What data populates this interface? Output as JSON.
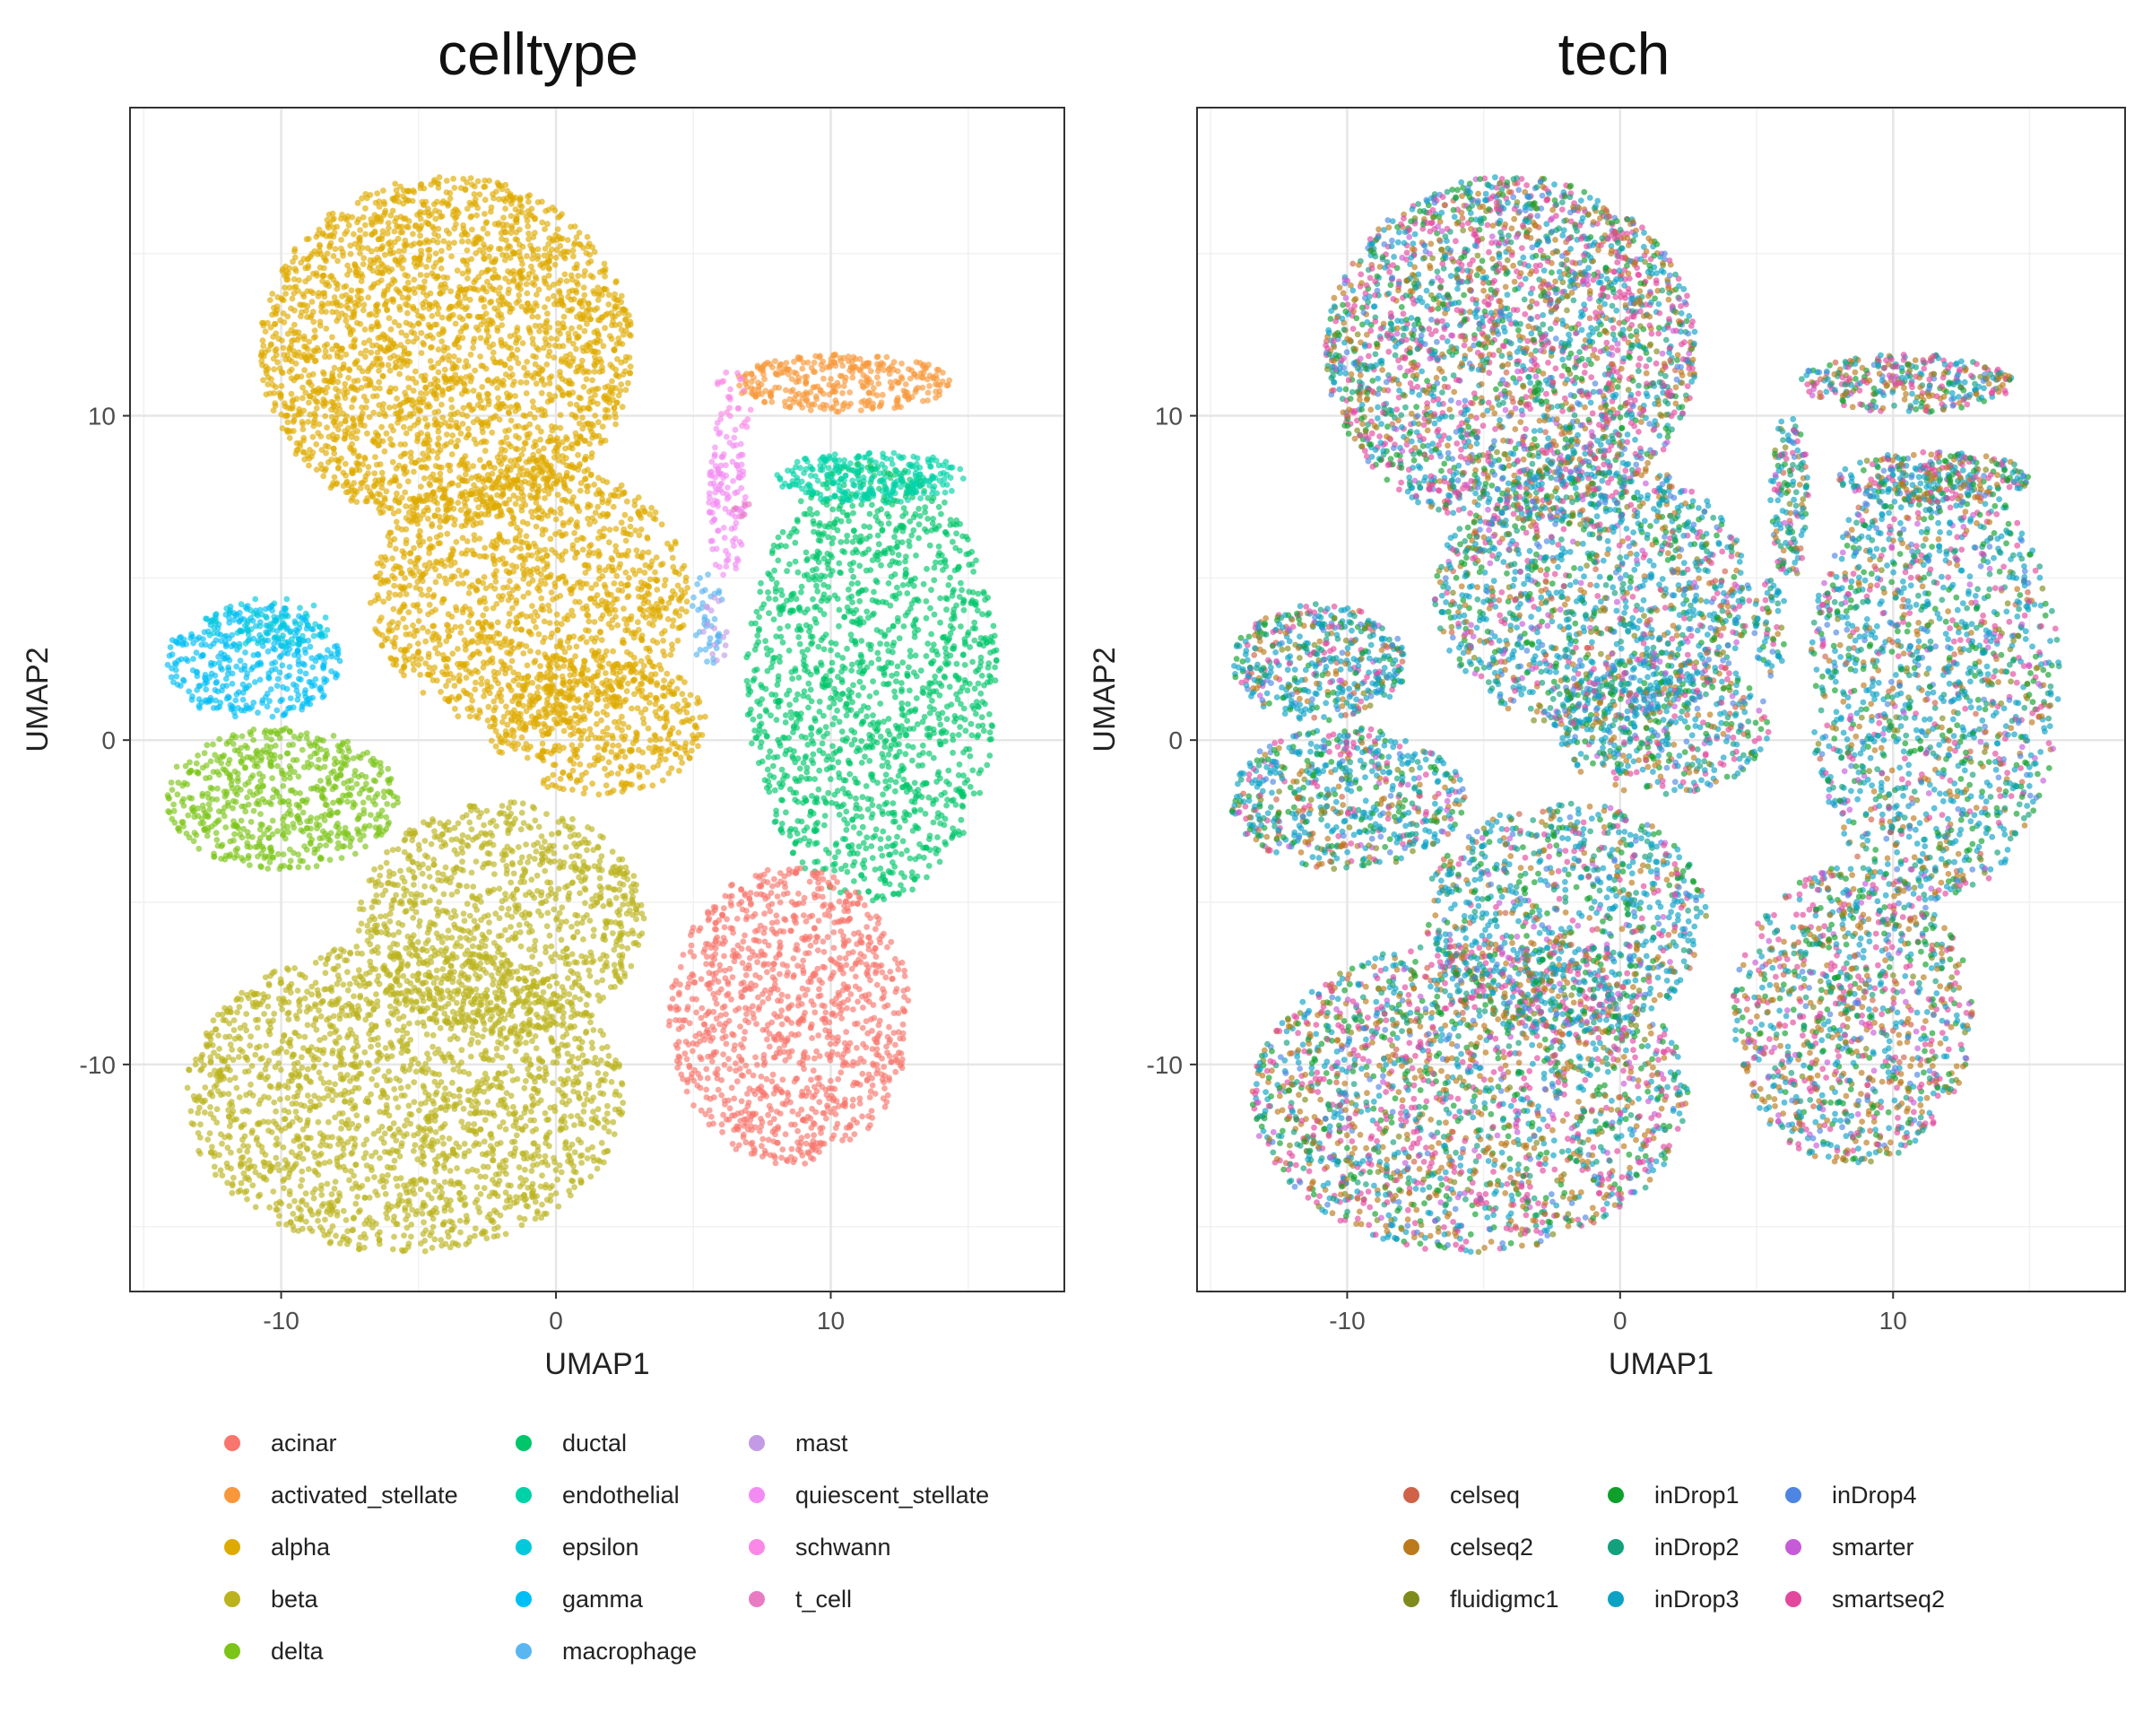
{
  "chart_data": [
    {
      "type": "scatter",
      "title": "celltype",
      "xlabel": "UMAP1",
      "ylabel": "UMAP2",
      "xlim": [
        -15.5,
        18.5
      ],
      "ylim": [
        -17,
        19.5
      ],
      "xticks": [
        -10,
        0,
        10
      ],
      "yticks": [
        -10,
        0,
        10
      ],
      "xtick_labels": [
        "-10",
        "0",
        "10"
      ],
      "ytick_labels": [
        "-10",
        "0",
        "10"
      ],
      "grid": true,
      "legend_position": "bottom",
      "legend": [
        {
          "label": "acinar",
          "color": "#F8766D"
        },
        {
          "label": "activated_stellate",
          "color": "#F8983B"
        },
        {
          "label": "alpha",
          "color": "#DEAA00"
        },
        {
          "label": "beta",
          "color": "#BBB31E"
        },
        {
          "label": "delta",
          "color": "#7CC418"
        },
        {
          "label": "ductal",
          "color": "#00C66A"
        },
        {
          "label": "endothelial",
          "color": "#00D2A8"
        },
        {
          "label": "epsilon",
          "color": "#00C9DB"
        },
        {
          "label": "gamma",
          "color": "#00BFF4"
        },
        {
          "label": "macrophage",
          "color": "#5AB6F0"
        },
        {
          "label": "mast",
          "color": "#C39BE5"
        },
        {
          "label": "quiescent_stellate",
          "color": "#F28CF3"
        },
        {
          "label": "schwann",
          "color": "#FA88E6"
        },
        {
          "label": "t_cell",
          "color": "#E87BC2"
        }
      ],
      "clusters": [
        {
          "series": "alpha",
          "cx": -4,
          "cy": 12,
          "rx": 6.8,
          "ry": 5.4,
          "n": 2600
        },
        {
          "series": "alpha",
          "cx": -1,
          "cy": 4.5,
          "rx": 5.8,
          "ry": 4.2,
          "n": 1400
        },
        {
          "series": "alpha",
          "cx": 1.5,
          "cy": 0.5,
          "rx": 4,
          "ry": 2.2,
          "n": 500
        },
        {
          "series": "beta",
          "cx": -5.5,
          "cy": -11,
          "rx": 8,
          "ry": 4.8,
          "n": 2100
        },
        {
          "series": "beta",
          "cx": -2,
          "cy": -5.5,
          "rx": 5.2,
          "ry": 3.6,
          "n": 1000
        },
        {
          "series": "gamma",
          "cx": -11,
          "cy": 2.4,
          "rx": 3.2,
          "ry": 1.8,
          "n": 380
        },
        {
          "series": "epsilon",
          "cx": -10.5,
          "cy": 3.6,
          "rx": 2.4,
          "ry": 0.8,
          "n": 80
        },
        {
          "series": "delta",
          "cx": -10,
          "cy": -1.8,
          "rx": 4.3,
          "ry": 2.2,
          "n": 620
        },
        {
          "series": "ductal",
          "cx": 11.5,
          "cy": 1.8,
          "rx": 4.6,
          "ry": 6.8,
          "n": 1500
        },
        {
          "series": "acinar",
          "cx": 8.5,
          "cy": -8.5,
          "rx": 4.4,
          "ry": 4.6,
          "n": 1100
        },
        {
          "series": "activated_stellate",
          "cx": 10.5,
          "cy": 11,
          "rx": 4,
          "ry": 0.9,
          "n": 320
        },
        {
          "series": "endothelial",
          "cx": 11.5,
          "cy": 8.1,
          "rx": 3.5,
          "ry": 0.8,
          "n": 260
        },
        {
          "series": "quiescent_stellate",
          "cx": 6.2,
          "cy": 7.5,
          "rx": 0.7,
          "ry": 2.6,
          "n": 120
        },
        {
          "series": "schwann",
          "cx": 6.5,
          "cy": 10.5,
          "rx": 0.7,
          "ry": 1.1,
          "n": 25
        },
        {
          "series": "macrophage",
          "cx": 5.5,
          "cy": 3.8,
          "rx": 0.6,
          "ry": 1.6,
          "n": 40
        },
        {
          "series": "mast",
          "cx": 5.8,
          "cy": 3.2,
          "rx": 0.5,
          "ry": 1.2,
          "n": 15
        },
        {
          "series": "t_cell",
          "cx": 6.8,
          "cy": 7.2,
          "rx": 0.4,
          "ry": 0.5,
          "n": 6
        }
      ]
    },
    {
      "type": "scatter",
      "title": "tech",
      "xlabel": "UMAP1",
      "ylabel": "UMAP2",
      "xlim": [
        -15.5,
        18.5
      ],
      "ylim": [
        -17,
        19.5
      ],
      "xticks": [
        -10,
        0,
        10
      ],
      "yticks": [
        -10,
        0,
        10
      ],
      "xtick_labels": [
        "-10",
        "0",
        "10"
      ],
      "ytick_labels": [
        "-10",
        "0",
        "10"
      ],
      "grid": true,
      "legend_position": "bottom",
      "legend": [
        {
          "label": "celseq",
          "color": "#D0624A"
        },
        {
          "label": "celseq2",
          "color": "#BB7A1C"
        },
        {
          "label": "fluidigmc1",
          "color": "#7F8A1C"
        },
        {
          "label": "inDrop1",
          "color": "#0FA02B"
        },
        {
          "label": "inDrop2",
          "color": "#12A07D"
        },
        {
          "label": "inDrop3",
          "color": "#0DA2C4"
        },
        {
          "label": "inDrop4",
          "color": "#4E85E2"
        },
        {
          "label": "smarter",
          "color": "#C65BD8"
        },
        {
          "label": "smartseq2",
          "color": "#E2489E"
        }
      ],
      "clusters": [
        {
          "series": "mixed",
          "cx": -4,
          "cy": 12,
          "rx": 6.8,
          "ry": 5.4,
          "n": 2600
        },
        {
          "series": "mixed",
          "cx": -1,
          "cy": 4.5,
          "rx": 5.8,
          "ry": 4.2,
          "n": 1400
        },
        {
          "series": "mixed",
          "cx": 1.5,
          "cy": 0.5,
          "rx": 4,
          "ry": 2.2,
          "n": 500
        },
        {
          "series": "mixed",
          "cx": -5.5,
          "cy": -11,
          "rx": 8,
          "ry": 4.8,
          "n": 2100
        },
        {
          "series": "mixed",
          "cx": -2,
          "cy": -5.5,
          "rx": 5.2,
          "ry": 3.6,
          "n": 1000
        },
        {
          "series": "mixed",
          "cx": -11,
          "cy": 2.4,
          "rx": 3.2,
          "ry": 1.8,
          "n": 460
        },
        {
          "series": "mixed",
          "cx": -10,
          "cy": -1.8,
          "rx": 4.3,
          "ry": 2.2,
          "n": 620
        },
        {
          "series": "mixed",
          "cx": 11.5,
          "cy": 1.8,
          "rx": 4.6,
          "ry": 6.8,
          "n": 1500
        },
        {
          "series": "mixed",
          "cx": 8.5,
          "cy": -8.5,
          "rx": 4.4,
          "ry": 4.6,
          "n": 1100
        },
        {
          "series": "mixed",
          "cx": 10.5,
          "cy": 11,
          "rx": 4,
          "ry": 0.9,
          "n": 320
        },
        {
          "series": "mixed",
          "cx": 11.5,
          "cy": 8.1,
          "rx": 3.5,
          "ry": 0.8,
          "n": 260
        },
        {
          "series": "mixed",
          "cx": 6.2,
          "cy": 7.5,
          "rx": 0.7,
          "ry": 2.6,
          "n": 150
        },
        {
          "series": "mixed",
          "cx": 5.5,
          "cy": 3.5,
          "rx": 0.6,
          "ry": 1.6,
          "n": 60
        }
      ]
    }
  ]
}
